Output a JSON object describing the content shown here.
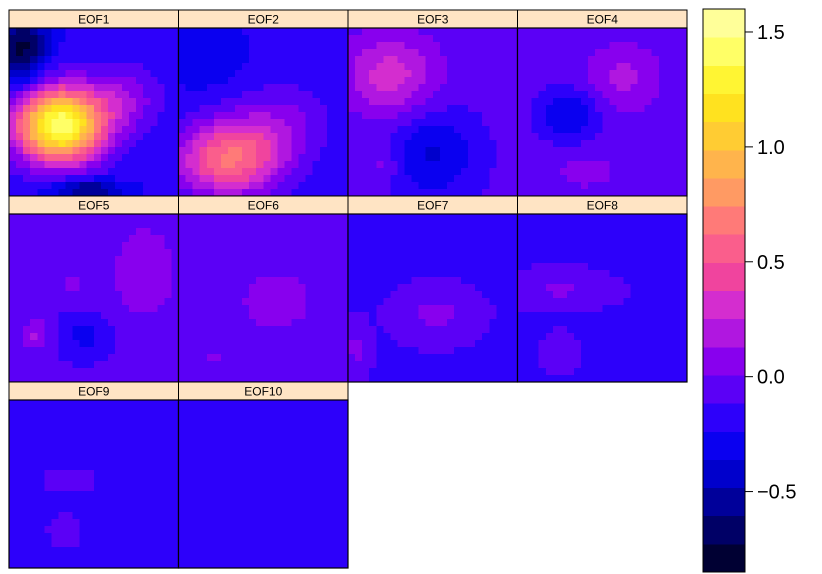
{
  "chart_data": {
    "type": "heatmap",
    "title": "",
    "xlabel": "",
    "ylabel": "",
    "layout": {
      "columns": 4,
      "rows": 3
    },
    "panels": [
      {
        "name": "EOF1",
        "bg": -0.22,
        "blobs": [
          {
            "cx": 0.3,
            "cy": 0.58,
            "rx": 0.26,
            "ry": 0.22,
            "amp": 1.7
          },
          {
            "cx": 0.08,
            "cy": 0.12,
            "rx": 0.14,
            "ry": 0.22,
            "amp": -0.55
          },
          {
            "cx": 0.68,
            "cy": 0.42,
            "rx": 0.22,
            "ry": 0.2,
            "amp": 0.3
          },
          {
            "cx": 0.45,
            "cy": 0.96,
            "rx": 0.2,
            "ry": 0.06,
            "amp": -0.45
          }
        ]
      },
      {
        "name": "EOF2",
        "bg": -0.22,
        "blobs": [
          {
            "cx": 0.3,
            "cy": 0.78,
            "rx": 0.32,
            "ry": 0.22,
            "amp": 0.85
          },
          {
            "cx": 0.6,
            "cy": 0.55,
            "rx": 0.3,
            "ry": 0.22,
            "amp": 0.25
          },
          {
            "cx": 0.18,
            "cy": 0.2,
            "rx": 0.22,
            "ry": 0.18,
            "amp": -0.1
          }
        ]
      },
      {
        "name": "EOF3",
        "bg": -0.08,
        "blobs": [
          {
            "cx": 0.25,
            "cy": 0.28,
            "rx": 0.28,
            "ry": 0.24,
            "amp": 0.4
          },
          {
            "cx": 0.5,
            "cy": 0.75,
            "rx": 0.25,
            "ry": 0.25,
            "amp": -0.3
          },
          {
            "cx": 0.2,
            "cy": 0.8,
            "rx": 0.1,
            "ry": 0.12,
            "amp": 0.15
          }
        ]
      },
      {
        "name": "EOF4",
        "bg": -0.05,
        "blobs": [
          {
            "cx": 0.3,
            "cy": 0.52,
            "rx": 0.18,
            "ry": 0.16,
            "amp": -0.3
          },
          {
            "cx": 0.62,
            "cy": 0.3,
            "rx": 0.2,
            "ry": 0.18,
            "amp": 0.22
          },
          {
            "cx": 0.4,
            "cy": 0.85,
            "rx": 0.2,
            "ry": 0.12,
            "amp": 0.1
          }
        ]
      },
      {
        "name": "EOF5",
        "bg": -0.1,
        "blobs": [
          {
            "cx": 0.8,
            "cy": 0.35,
            "rx": 0.22,
            "ry": 0.32,
            "amp": 0.2
          },
          {
            "cx": 0.38,
            "cy": 0.42,
            "rx": 0.1,
            "ry": 0.1,
            "amp": 0.12
          },
          {
            "cx": 0.45,
            "cy": 0.72,
            "rx": 0.14,
            "ry": 0.12,
            "amp": -0.18
          },
          {
            "cx": 0.15,
            "cy": 0.72,
            "rx": 0.08,
            "ry": 0.1,
            "amp": 0.25
          }
        ]
      },
      {
        "name": "EOF6",
        "bg": -0.1,
        "blobs": [
          {
            "cx": 0.58,
            "cy": 0.52,
            "rx": 0.22,
            "ry": 0.18,
            "amp": 0.22
          },
          {
            "cx": 0.2,
            "cy": 0.85,
            "rx": 0.14,
            "ry": 0.1,
            "amp": 0.12
          }
        ]
      },
      {
        "name": "EOF7",
        "bg": -0.12,
        "blobs": [
          {
            "cx": 0.52,
            "cy": 0.6,
            "rx": 0.18,
            "ry": 0.12,
            "amp": 0.18
          },
          {
            "cx": 0.05,
            "cy": 0.8,
            "rx": 0.06,
            "ry": 0.12,
            "amp": 0.18
          }
        ]
      },
      {
        "name": "EOF8",
        "bg": -0.12,
        "blobs": [
          {
            "cx": 0.25,
            "cy": 0.45,
            "rx": 0.22,
            "ry": 0.08,
            "amp": 0.15
          },
          {
            "cx": 0.25,
            "cy": 0.82,
            "rx": 0.07,
            "ry": 0.08,
            "amp": 0.12
          }
        ]
      },
      {
        "name": "EOF9",
        "bg": -0.14,
        "blobs": [
          {
            "cx": 0.35,
            "cy": 0.48,
            "rx": 0.12,
            "ry": 0.06,
            "amp": 0.14
          },
          {
            "cx": 0.33,
            "cy": 0.78,
            "rx": 0.08,
            "ry": 0.08,
            "amp": 0.14
          }
        ]
      },
      {
        "name": "EOF10",
        "bg": -0.14,
        "blobs": []
      }
    ],
    "colorbar": {
      "min": -0.85,
      "max": 1.6,
      "levels": 20,
      "ticks": [
        {
          "value": 1.5,
          "label": "1.5"
        },
        {
          "value": 1.0,
          "label": "1.0"
        },
        {
          "value": 0.5,
          "label": "0.5"
        },
        {
          "value": 0.0,
          "label": "0.0"
        },
        {
          "value": -0.5,
          "label": "−0.5"
        }
      ],
      "palette": [
        "#000033",
        "#000066",
        "#00009a",
        "#0000cc",
        "#0a00f0",
        "#2d00fa",
        "#5b00f6",
        "#8800ee",
        "#b017e0",
        "#d42dcf",
        "#f0449e",
        "#fa5e8c",
        "#ff7a78",
        "#ff9a63",
        "#ffb44c",
        "#ffcc33",
        "#ffe21f",
        "#fff533",
        "#ffff66",
        "#ffff99"
      ]
    },
    "strip_color": "#ffe4c4",
    "grid": false
  }
}
